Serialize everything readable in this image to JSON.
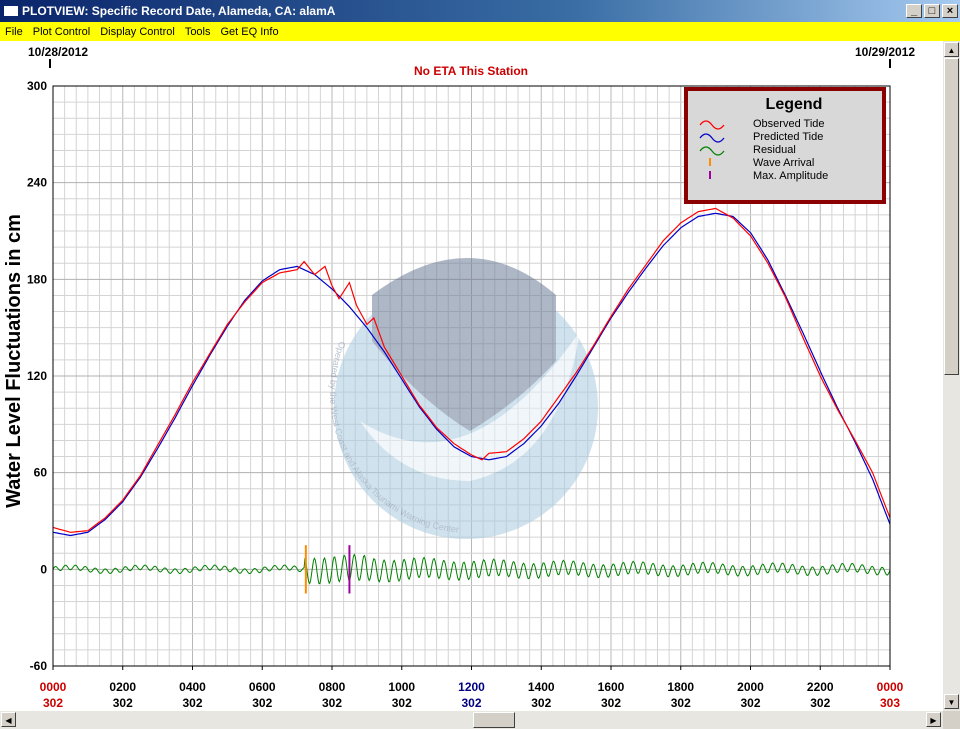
{
  "window": {
    "title": "PLOTVIEW: Specific Record Date, Alameda, CA: alamA",
    "buttons": [
      "_",
      "□",
      "×"
    ]
  },
  "menu": [
    "File",
    "Plot Control",
    "Display Control",
    "Tools",
    "Get EQ Info"
  ],
  "plot": {
    "date_left": "10/28/2012",
    "date_right": "10/29/2012",
    "status": "No ETA This Station",
    "watermark_text": "Operated by the West Coast and Alaska Tsunami Warning Center"
  },
  "legend": {
    "title": "Legend",
    "items": [
      {
        "label": "Observed Tide",
        "color": "#ff0000",
        "icon": "wave"
      },
      {
        "label": "Predicted Tide",
        "color": "#0000c8",
        "icon": "wave"
      },
      {
        "label": "Residual",
        "color": "#008000",
        "icon": "wave"
      },
      {
        "label": "Wave Arrival",
        "color": "#ff8c00",
        "icon": "bar"
      },
      {
        "label": "Max. Amplitude",
        "color": "#a000a0",
        "icon": "bar"
      }
    ]
  },
  "chart_data": {
    "type": "line",
    "ylabel": "Water Level Fluctuations in cm",
    "ylim": [
      -60,
      300
    ],
    "yticks": [
      "300",
      "240",
      "180",
      "120",
      "60",
      "0",
      "-60"
    ],
    "xlim": [
      0,
      24
    ],
    "xticks": [
      {
        "time": "0000",
        "day": "302",
        "color": "#cc0000"
      },
      {
        "time": "0200",
        "day": "302",
        "color": "#000000"
      },
      {
        "time": "0400",
        "day": "302",
        "color": "#000000"
      },
      {
        "time": "0600",
        "day": "302",
        "color": "#000000"
      },
      {
        "time": "0800",
        "day": "302",
        "color": "#000000"
      },
      {
        "time": "1000",
        "day": "302",
        "color": "#000000"
      },
      {
        "time": "1200",
        "day": "302",
        "color": "#000080"
      },
      {
        "time": "1400",
        "day": "302",
        "color": "#000000"
      },
      {
        "time": "1600",
        "day": "302",
        "color": "#000000"
      },
      {
        "time": "1800",
        "day": "302",
        "color": "#000000"
      },
      {
        "time": "2000",
        "day": "302",
        "color": "#000000"
      },
      {
        "time": "2200",
        "day": "302",
        "color": "#000000"
      },
      {
        "time": "0000",
        "day": "303",
        "color": "#cc0000"
      }
    ],
    "series": [
      {
        "name": "Predicted Tide",
        "color": "#0000c8",
        "x": [
          0,
          0.5,
          1,
          1.5,
          2,
          2.5,
          3,
          3.5,
          4,
          4.5,
          5,
          5.5,
          6,
          6.5,
          7,
          7.5,
          8,
          8.5,
          9,
          9.5,
          10,
          10.5,
          11,
          11.5,
          12,
          12.5,
          13,
          13.5,
          14,
          14.5,
          15,
          15.5,
          16,
          16.5,
          17,
          17.5,
          18,
          18.5,
          19,
          19.5,
          20,
          20.5,
          21,
          21.5,
          22,
          22.5,
          23,
          23.5,
          24
        ],
        "y": [
          23,
          21,
          23,
          31,
          42,
          57,
          75,
          94,
          114,
          133,
          151,
          167,
          179,
          186,
          188,
          183,
          174,
          163,
          150,
          135,
          118,
          101,
          87,
          76,
          70,
          68,
          70,
          78,
          89,
          103,
          120,
          138,
          156,
          172,
          187,
          201,
          212,
          219,
          221,
          219,
          209,
          192,
          170,
          147,
          123,
          100,
          79,
          56,
          28
        ]
      },
      {
        "name": "Observed Tide",
        "color": "#ff0000",
        "x": [
          0,
          0.5,
          1,
          1.5,
          2,
          2.5,
          3,
          3.5,
          4,
          4.5,
          5,
          5.5,
          6,
          6.5,
          7,
          7.2,
          7.5,
          7.8,
          8,
          8.2,
          8.5,
          8.7,
          9,
          9.2,
          9.5,
          10,
          10.5,
          11,
          11.5,
          12,
          12.3,
          12.5,
          13,
          13.5,
          14,
          14.5,
          15,
          15.5,
          16,
          16.5,
          17,
          17.5,
          18,
          18.5,
          19,
          19.5,
          20,
          20.5,
          21,
          21.5,
          22,
          22.5,
          23,
          23.5,
          24
        ],
        "y": [
          26,
          23,
          24,
          32,
          43,
          58,
          77,
          96,
          116,
          134,
          152,
          166,
          178,
          184,
          186,
          191,
          183,
          188,
          176,
          168,
          178,
          164,
          152,
          156,
          138,
          120,
          102,
          88,
          78,
          71,
          68,
          72,
          73,
          81,
          92,
          107,
          122,
          139,
          157,
          174,
          189,
          204,
          215,
          222,
          224,
          218,
          207,
          190,
          169,
          144,
          120,
          99,
          80,
          60,
          32
        ]
      },
      {
        "name": "Residual",
        "color": "#008000",
        "type": "oscillation",
        "baseline": 0
      },
      {
        "name": "Wave Arrival",
        "color": "#ff8c00",
        "x": 7.25
      },
      {
        "name": "Max. Amplitude",
        "color": "#a000a0",
        "x": 8.5
      }
    ],
    "grid": true,
    "legend_position": "top-right"
  }
}
